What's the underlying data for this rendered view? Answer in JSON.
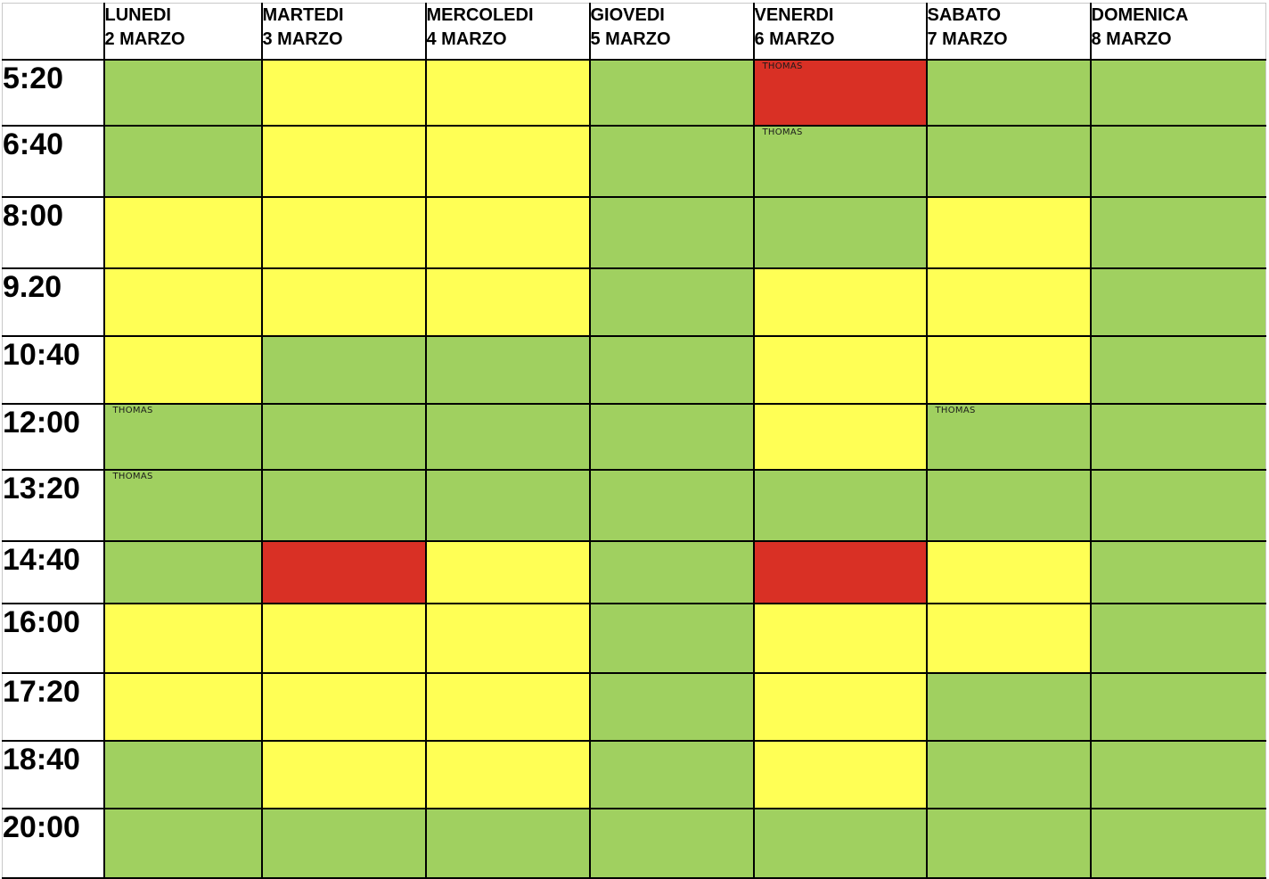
{
  "colors": {
    "free": "#a0d060",
    "partial": "#ffff55",
    "busy": "#d93025"
  },
  "days": [
    {
      "name": "LUNEDI",
      "date": "2 MARZO"
    },
    {
      "name": "MARTEDI",
      "date": "3 MARZO"
    },
    {
      "name": "MERCOLEDI",
      "date": "4 MARZO"
    },
    {
      "name": "GIOVEDI",
      "date": "5 MARZO"
    },
    {
      "name": "VENERDI",
      "date": "6 MARZO"
    },
    {
      "name": "SABATO",
      "date": "7 MARZO"
    },
    {
      "name": "DOMENICA",
      "date": "8 MARZO"
    }
  ],
  "rows": [
    {
      "time": "5:20",
      "slots": [
        {
          "status": "green",
          "note": ""
        },
        {
          "status": "yellow",
          "note": ""
        },
        {
          "status": "yellow",
          "note": ""
        },
        {
          "status": "green",
          "note": ""
        },
        {
          "status": "red",
          "note": "THOMAS"
        },
        {
          "status": "green",
          "note": ""
        },
        {
          "status": "green",
          "note": ""
        }
      ]
    },
    {
      "time": "6:40",
      "slots": [
        {
          "status": "green",
          "note": ""
        },
        {
          "status": "yellow",
          "note": ""
        },
        {
          "status": "yellow",
          "note": ""
        },
        {
          "status": "green",
          "note": ""
        },
        {
          "status": "green",
          "note": "THOMAS"
        },
        {
          "status": "green",
          "note": ""
        },
        {
          "status": "green",
          "note": ""
        }
      ]
    },
    {
      "time": "8:00",
      "slots": [
        {
          "status": "yellow",
          "note": ""
        },
        {
          "status": "yellow",
          "note": ""
        },
        {
          "status": "yellow",
          "note": ""
        },
        {
          "status": "green",
          "note": ""
        },
        {
          "status": "green",
          "note": ""
        },
        {
          "status": "yellow",
          "note": ""
        },
        {
          "status": "green",
          "note": ""
        }
      ]
    },
    {
      "time": "9.20",
      "slots": [
        {
          "status": "yellow",
          "note": ""
        },
        {
          "status": "yellow",
          "note": ""
        },
        {
          "status": "yellow",
          "note": ""
        },
        {
          "status": "green",
          "note": ""
        },
        {
          "status": "yellow",
          "note": ""
        },
        {
          "status": "yellow",
          "note": ""
        },
        {
          "status": "green",
          "note": ""
        }
      ]
    },
    {
      "time": "10:40",
      "slots": [
        {
          "status": "yellow",
          "note": ""
        },
        {
          "status": "green",
          "note": ""
        },
        {
          "status": "green",
          "note": ""
        },
        {
          "status": "green",
          "note": ""
        },
        {
          "status": "yellow",
          "note": ""
        },
        {
          "status": "yellow",
          "note": ""
        },
        {
          "status": "green",
          "note": ""
        }
      ]
    },
    {
      "time": "12:00",
      "slots": [
        {
          "status": "green",
          "note": "THOMAS"
        },
        {
          "status": "green",
          "note": ""
        },
        {
          "status": "green",
          "note": ""
        },
        {
          "status": "green",
          "note": ""
        },
        {
          "status": "yellow",
          "note": ""
        },
        {
          "status": "green",
          "note": "THOMAS"
        },
        {
          "status": "green",
          "note": ""
        }
      ]
    },
    {
      "time": "13:20",
      "slots": [
        {
          "status": "green",
          "note": "THOMAS"
        },
        {
          "status": "green",
          "note": ""
        },
        {
          "status": "green",
          "note": ""
        },
        {
          "status": "green",
          "note": ""
        },
        {
          "status": "green",
          "note": ""
        },
        {
          "status": "green",
          "note": ""
        },
        {
          "status": "green",
          "note": ""
        }
      ]
    },
    {
      "time": "14:40",
      "slots": [
        {
          "status": "green",
          "note": ""
        },
        {
          "status": "red",
          "note": ""
        },
        {
          "status": "yellow",
          "note": ""
        },
        {
          "status": "green",
          "note": ""
        },
        {
          "status": "red",
          "note": ""
        },
        {
          "status": "yellow",
          "note": ""
        },
        {
          "status": "green",
          "note": ""
        }
      ]
    },
    {
      "time": "16:00",
      "slots": [
        {
          "status": "yellow",
          "note": ""
        },
        {
          "status": "yellow",
          "note": ""
        },
        {
          "status": "yellow",
          "note": ""
        },
        {
          "status": "green",
          "note": ""
        },
        {
          "status": "yellow",
          "note": ""
        },
        {
          "status": "yellow",
          "note": ""
        },
        {
          "status": "green",
          "note": ""
        }
      ]
    },
    {
      "time": "17:20",
      "slots": [
        {
          "status": "yellow",
          "note": ""
        },
        {
          "status": "yellow",
          "note": ""
        },
        {
          "status": "yellow",
          "note": ""
        },
        {
          "status": "green",
          "note": ""
        },
        {
          "status": "yellow",
          "note": ""
        },
        {
          "status": "green",
          "note": ""
        },
        {
          "status": "green",
          "note": ""
        }
      ]
    },
    {
      "time": "18:40",
      "slots": [
        {
          "status": "green",
          "note": ""
        },
        {
          "status": "yellow",
          "note": ""
        },
        {
          "status": "yellow",
          "note": ""
        },
        {
          "status": "green",
          "note": ""
        },
        {
          "status": "yellow",
          "note": ""
        },
        {
          "status": "green",
          "note": ""
        },
        {
          "status": "green",
          "note": ""
        }
      ]
    },
    {
      "time": "20:00",
      "slots": [
        {
          "status": "green",
          "note": ""
        },
        {
          "status": "green",
          "note": ""
        },
        {
          "status": "green",
          "note": ""
        },
        {
          "status": "green",
          "note": ""
        },
        {
          "status": "green",
          "note": ""
        },
        {
          "status": "green",
          "note": ""
        },
        {
          "status": "green",
          "note": ""
        }
      ]
    }
  ]
}
